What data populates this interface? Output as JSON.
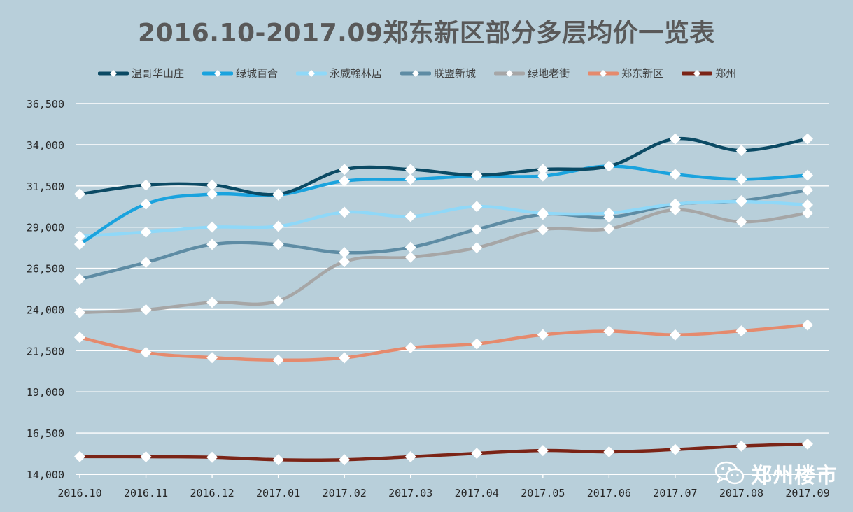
{
  "chart_data": {
    "type": "line",
    "title": "2016.10-2017.09郑东新区部分多层均价一览表",
    "categories": [
      "2016.10",
      "2016.11",
      "2016.12",
      "2017.01",
      "2017.02",
      "2017.03",
      "2017.04",
      "2017.05",
      "2017.06",
      "2017.07",
      "2017.08",
      "2017.09"
    ],
    "ylim": [
      14000,
      36500
    ],
    "yticks": [
      14000,
      16500,
      19000,
      21500,
      24000,
      26500,
      29000,
      31500,
      34000,
      36500
    ],
    "ytick_labels": [
      "14,000",
      "16,500",
      "19,000",
      "21,500",
      "24,000",
      "26,500",
      "29,000",
      "31,500",
      "34,000",
      "36,500"
    ],
    "legend_position": "top",
    "grid": true,
    "series": [
      {
        "name": "温哥华山庄",
        "color": "#0b4a64",
        "values": [
          31000,
          31550,
          31550,
          31000,
          32500,
          32500,
          32150,
          32500,
          32700,
          34350,
          33650,
          34350
        ]
      },
      {
        "name": "绿城百合",
        "color": "#1aa3de",
        "values": [
          27960,
          30400,
          31000,
          30950,
          31800,
          31900,
          32100,
          32100,
          32700,
          32200,
          31900,
          32150
        ]
      },
      {
        "name": "永威翰林居",
        "color": "#8fd8f8",
        "values": [
          28440,
          28700,
          29000,
          29050,
          29900,
          29650,
          30250,
          29850,
          29850,
          30400,
          30550,
          30350
        ]
      },
      {
        "name": "联盟新城",
        "color": "#5e8ca4",
        "values": [
          25840,
          26850,
          27950,
          27950,
          27450,
          27770,
          28860,
          29770,
          29600,
          30380,
          30600,
          31240
        ]
      },
      {
        "name": "绿地老街",
        "color": "#a6a6a6",
        "values": [
          23810,
          23980,
          24430,
          24520,
          26900,
          27170,
          27750,
          28850,
          28900,
          30050,
          29320,
          29850
        ]
      },
      {
        "name": "郑东新区",
        "color": "#e58a6d",
        "values": [
          22310,
          21390,
          21080,
          20930,
          21070,
          21680,
          21910,
          22470,
          22680,
          22460,
          22700,
          23060
        ]
      },
      {
        "name": "郑州",
        "color": "#7b2416",
        "values": [
          15070,
          15060,
          15030,
          14880,
          14880,
          15060,
          15270,
          15440,
          15360,
          15500,
          15710,
          15830
        ]
      }
    ]
  },
  "watermark": {
    "text": "郑州楼市",
    "icon": "wechat-icon"
  }
}
